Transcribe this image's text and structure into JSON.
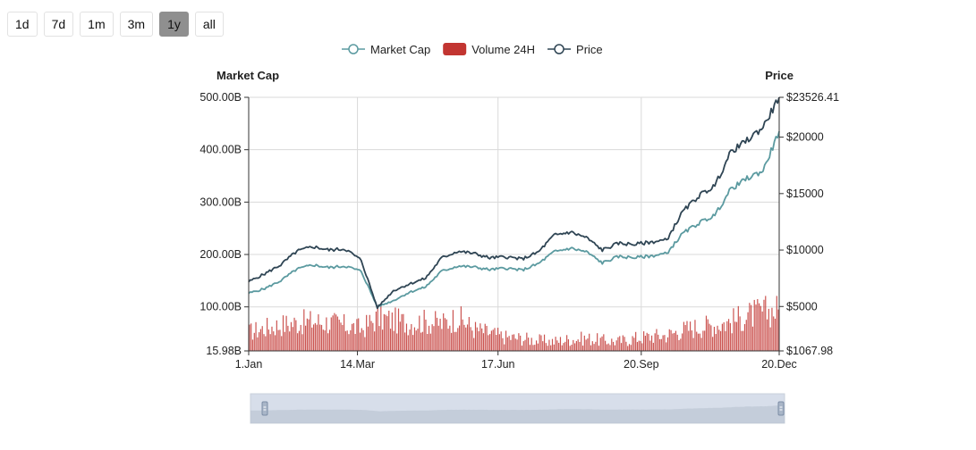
{
  "range_buttons": [
    {
      "label": "1d",
      "active": false
    },
    {
      "label": "7d",
      "active": false
    },
    {
      "label": "1m",
      "active": false
    },
    {
      "label": "3m",
      "active": false
    },
    {
      "label": "1y",
      "active": true
    },
    {
      "label": "all",
      "active": false
    }
  ],
  "legend": [
    {
      "label": "Market Cap",
      "type": "line-marker",
      "color": "#5b9aa0"
    },
    {
      "label": "Volume 24H",
      "type": "bar",
      "color": "#c23531"
    },
    {
      "label": "Price",
      "type": "line-marker",
      "color": "#2f4554"
    }
  ],
  "colors": {
    "market_cap": "#5b9aa0",
    "price": "#2f4554",
    "volume": "#c23531",
    "grid": "#d9d9d9",
    "zoom_fill": "#d3dbe8"
  },
  "chart_data": {
    "type": "line",
    "x_tick_labels": [
      "1.Jan",
      "14.Mar",
      "17.Jun",
      "20.Sep",
      "20.Dec"
    ],
    "left_axis": {
      "title": "Market Cap",
      "tick_labels": [
        "500.00B",
        "400.00B",
        "300.00B",
        "200.00B",
        "100.00B",
        "15.98B"
      ],
      "ylim": [
        15.98,
        500
      ]
    },
    "right_axis": {
      "title": "Price",
      "tick_labels": [
        "$23526.41",
        "$20000",
        "$15000",
        "$10000",
        "$5000",
        "$1067.98"
      ],
      "ylim": [
        1067.98,
        23526.41
      ]
    },
    "grid": true,
    "legend_position": "top-center",
    "series": [
      {
        "name": "Market Cap",
        "axis": "left",
        "values": [
          126,
          135,
          150,
          172,
          180,
          175,
          178,
          168,
          100,
          112,
          128,
          138,
          168,
          178,
          176,
          171,
          174,
          170,
          182,
          205,
          212,
          205,
          184,
          196,
          194,
          197,
          202,
          240,
          260,
          275,
          325,
          345,
          360,
          435
        ]
      },
      {
        "name": "Price",
        "axis": "right",
        "values": [
          7200,
          7900,
          8700,
          9900,
          10300,
          10000,
          10100,
          9100,
          4900,
          6400,
          7000,
          7500,
          9300,
          9900,
          9700,
          9300,
          9400,
          9200,
          9800,
          11300,
          11600,
          11100,
          10000,
          10600,
          10500,
          10700,
          10900,
          13400,
          14800,
          15700,
          18700,
          19700,
          20900,
          23526.41
        ]
      },
      {
        "name": "Volume 24H",
        "axis": "left",
        "type": "bar",
        "values": [
          52,
          60,
          66,
          70,
          72,
          70,
          64,
          58,
          80,
          74,
          70,
          72,
          68,
          80,
          58,
          50,
          42,
          40,
          36,
          34,
          38,
          40,
          36,
          34,
          40,
          44,
          46,
          56,
          62,
          66,
          72,
          82,
          90,
          95
        ]
      }
    ]
  },
  "zoom_slider": {
    "label": "range-slider"
  }
}
